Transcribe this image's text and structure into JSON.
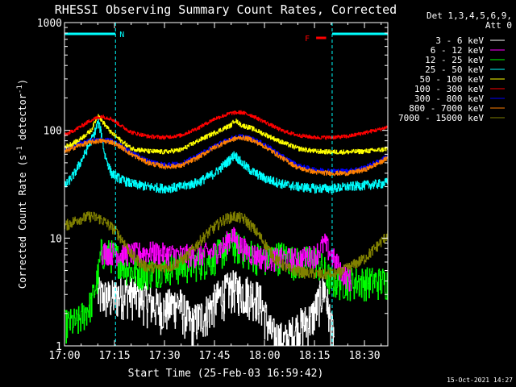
{
  "chart_data": {
    "type": "line",
    "title": "RHESSI Observing Summary Count Rates, Corrected",
    "xlabel": "Start Time (25-Feb-03 16:59:42)",
    "ylabel_main": "Corrected Count Rate (s",
    "ylabel_sup1": "-1",
    "ylabel_mid": " detector",
    "ylabel_sup2": "-1",
    "ylabel_end": ")",
    "y_scale": "log",
    "ylim": [
      1,
      1000
    ],
    "xlim_minutes": [
      0,
      97
    ],
    "x_ticks": [
      {
        "label": "17:00",
        "t": 0
      },
      {
        "label": "17:15",
        "t": 15
      },
      {
        "label": "17:30",
        "t": 30
      },
      {
        "label": "17:45",
        "t": 45
      },
      {
        "label": "18:00",
        "t": 60
      },
      {
        "label": "18:15",
        "t": 75
      },
      {
        "label": "18:30",
        "t": 90
      }
    ],
    "y_ticks": [
      {
        "label": "1",
        "v": 1
      },
      {
        "label": "10",
        "v": 10
      },
      {
        "label": "100",
        "v": 100
      },
      {
        "label": "1000",
        "v": 1000
      }
    ],
    "legend_header": [
      "Det 1,3,4,5,6,9,",
      "Att 0"
    ],
    "series": [
      {
        "name": "3 - 6 keV",
        "color": "#ffffff"
      },
      {
        "name": "6 - 12 keV",
        "color": "#ff00ff"
      },
      {
        "name": "12 - 25 keV",
        "color": "#00ff00"
      },
      {
        "name": "25 - 50 keV",
        "color": "#00ffff"
      },
      {
        "name": "50 - 100 keV",
        "color": "#ffff00"
      },
      {
        "name": "100 - 300 keV",
        "color": "#ff0000"
      },
      {
        "name": "300 - 800 keV",
        "color": "#0000ff"
      },
      {
        "name": "800 - 7000 keV",
        "color": "#ff8000"
      },
      {
        "name": "7000 - 15000 keV",
        "color": "#808000"
      }
    ],
    "annotations": {
      "night_label": "N",
      "flare_label": "F",
      "night_intervals": [
        [
          0,
          15.3
        ],
        [
          80.3,
          97
        ]
      ],
      "flare_interval": [
        75.5,
        78.5
      ]
    },
    "timestamp": "15-Oct-2021 14:27",
    "profiles": {
      "high_10_100": [
        [
          0,
          90
        ],
        [
          4,
          105
        ],
        [
          8,
          125
        ],
        [
          11,
          135
        ],
        [
          14,
          128
        ],
        [
          17,
          110
        ],
        [
          20,
          96
        ],
        [
          25,
          88
        ],
        [
          30,
          86
        ],
        [
          35,
          90
        ],
        [
          40,
          105
        ],
        [
          45,
          128
        ],
        [
          50,
          145
        ],
        [
          53,
          147
        ],
        [
          56,
          138
        ],
        [
          60,
          120
        ],
        [
          65,
          100
        ],
        [
          70,
          90
        ],
        [
          75,
          86
        ],
        [
          80,
          86
        ],
        [
          85,
          88
        ],
        [
          90,
          95
        ],
        [
          95,
          103
        ],
        [
          97,
          108
        ]
      ],
      "mid_50_100": [
        [
          0,
          70
        ],
        [
          4,
          80
        ],
        [
          8,
          100
        ],
        [
          10,
          140
        ],
        [
          11,
          125
        ],
        [
          14,
          95
        ],
        [
          17,
          80
        ],
        [
          20,
          68
        ],
        [
          25,
          64
        ],
        [
          30,
          63
        ],
        [
          35,
          66
        ],
        [
          40,
          80
        ],
        [
          45,
          95
        ],
        [
          50,
          112
        ],
        [
          51,
          125
        ],
        [
          53,
          112
        ],
        [
          56,
          105
        ],
        [
          60,
          92
        ],
        [
          65,
          78
        ],
        [
          70,
          68
        ],
        [
          75,
          64
        ],
        [
          80,
          63
        ],
        [
          85,
          63
        ],
        [
          90,
          64
        ],
        [
          95,
          66
        ],
        [
          97,
          68
        ]
      ],
      "mid_300_800": [
        [
          0,
          65
        ],
        [
          4,
          75
        ],
        [
          8,
          80
        ],
        [
          11,
          82
        ],
        [
          14,
          80
        ],
        [
          17,
          72
        ],
        [
          20,
          62
        ],
        [
          25,
          52
        ],
        [
          30,
          48
        ],
        [
          35,
          49
        ],
        [
          40,
          58
        ],
        [
          45,
          72
        ],
        [
          50,
          84
        ],
        [
          53,
          88
        ],
        [
          56,
          84
        ],
        [
          60,
          74
        ],
        [
          65,
          58
        ],
        [
          70,
          47
        ],
        [
          75,
          43
        ],
        [
          80,
          42
        ],
        [
          85,
          42
        ],
        [
          90,
          45
        ],
        [
          95,
          53
        ],
        [
          97,
          58
        ]
      ],
      "mid_800_7000": [
        [
          0,
          63
        ],
        [
          4,
          72
        ],
        [
          8,
          78
        ],
        [
          11,
          80
        ],
        [
          14,
          78
        ],
        [
          17,
          70
        ],
        [
          20,
          60
        ],
        [
          25,
          50
        ],
        [
          30,
          46
        ],
        [
          35,
          47
        ],
        [
          40,
          56
        ],
        [
          45,
          70
        ],
        [
          50,
          82
        ],
        [
          53,
          86
        ],
        [
          56,
          82
        ],
        [
          60,
          71
        ],
        [
          65,
          56
        ],
        [
          70,
          45
        ],
        [
          75,
          41
        ],
        [
          80,
          40
        ],
        [
          85,
          40
        ],
        [
          90,
          43
        ],
        [
          95,
          51
        ],
        [
          97,
          56
        ]
      ],
      "cyan_25_50": [
        [
          0,
          30
        ],
        [
          3,
          40
        ],
        [
          6,
          60
        ],
        [
          9,
          95
        ],
        [
          10,
          120
        ],
        [
          11,
          95
        ],
        [
          12,
          60
        ],
        [
          14,
          40
        ],
        [
          17,
          35
        ],
        [
          20,
          32
        ],
        [
          25,
          30
        ],
        [
          30,
          29
        ],
        [
          35,
          30
        ],
        [
          40,
          33
        ],
        [
          45,
          40
        ],
        [
          50,
          55
        ],
        [
          51,
          60
        ],
        [
          53,
          50
        ],
        [
          56,
          42
        ],
        [
          60,
          36
        ],
        [
          65,
          32
        ],
        [
          70,
          30
        ],
        [
          75,
          29
        ],
        [
          80,
          29
        ],
        [
          85,
          30
        ],
        [
          90,
          31
        ],
        [
          95,
          32
        ],
        [
          97,
          33
        ]
      ],
      "olive_7000": [
        [
          0,
          13
        ],
        [
          4,
          15
        ],
        [
          8,
          16
        ],
        [
          11,
          15
        ],
        [
          15,
          12
        ],
        [
          18,
          9
        ],
        [
          20,
          7
        ],
        [
          24,
          5.5
        ],
        [
          28,
          5.3
        ],
        [
          32,
          5.5
        ],
        [
          36,
          6.5
        ],
        [
          40,
          9
        ],
        [
          44,
          12
        ],
        [
          48,
          15
        ],
        [
          51,
          16
        ],
        [
          54,
          15
        ],
        [
          57,
          12
        ],
        [
          60,
          9
        ],
        [
          63,
          6.5
        ],
        [
          67,
          5.2
        ],
        [
          72,
          4.8
        ],
        [
          77,
          4.6
        ],
        [
          82,
          4.7
        ],
        [
          86,
          5.5
        ],
        [
          90,
          6.5
        ],
        [
          93,
          8
        ],
        [
          96,
          10
        ],
        [
          97,
          11
        ]
      ],
      "magenta_6_12": [
        [
          11,
          7.5
        ],
        [
          15,
          7.3
        ],
        [
          20,
          7.2
        ],
        [
          25,
          7.5
        ],
        [
          30,
          7.2
        ],
        [
          35,
          7
        ],
        [
          40,
          7
        ],
        [
          45,
          7.5
        ],
        [
          48,
          8.5
        ],
        [
          50,
          11
        ],
        [
          52,
          9
        ],
        [
          55,
          7.5
        ],
        [
          60,
          6.5
        ],
        [
          65,
          6.5
        ],
        [
          70,
          6.5
        ],
        [
          75,
          7
        ],
        [
          78,
          9
        ],
        [
          80,
          7
        ],
        [
          83,
          5
        ],
        [
          86,
          4
        ]
      ],
      "green_12_25": [
        [
          0,
          1.6
        ],
        [
          4,
          1.7
        ],
        [
          8,
          2.5
        ],
        [
          10,
          4.5
        ],
        [
          11,
          7.5
        ],
        [
          15,
          7
        ],
        [
          20,
          5
        ],
        [
          25,
          5
        ],
        [
          30,
          5.5
        ],
        [
          35,
          5.5
        ],
        [
          40,
          6
        ],
        [
          44,
          6.5
        ],
        [
          47,
          7.5
        ],
        [
          50,
          9
        ],
        [
          53,
          8
        ],
        [
          57,
          7
        ],
        [
          60,
          6.5
        ],
        [
          65,
          7
        ],
        [
          70,
          6
        ],
        [
          75,
          6.5
        ],
        [
          78,
          5
        ],
        [
          80,
          4
        ],
        [
          85,
          4
        ],
        [
          90,
          4
        ],
        [
          97,
          4
        ]
      ],
      "white_3_6": [
        [
          10,
          3
        ],
        [
          14,
          2.8
        ],
        [
          18,
          3.2
        ],
        [
          22,
          3
        ],
        [
          26,
          2.5
        ],
        [
          30,
          2.2
        ],
        [
          34,
          2.6
        ],
        [
          38,
          1.6
        ],
        [
          42,
          2
        ],
        [
          46,
          2.8
        ],
        [
          50,
          3.5
        ],
        [
          54,
          3.2
        ],
        [
          57,
          3
        ],
        [
          59,
          2.5
        ],
        [
          62,
          1.3
        ],
        [
          66,
          1.1
        ],
        [
          70,
          1.5
        ],
        [
          74,
          1.8
        ],
        [
          76,
          2.5
        ],
        [
          78,
          3.5
        ],
        [
          80,
          1.5
        ],
        [
          81,
          1.2
        ]
      ]
    }
  }
}
